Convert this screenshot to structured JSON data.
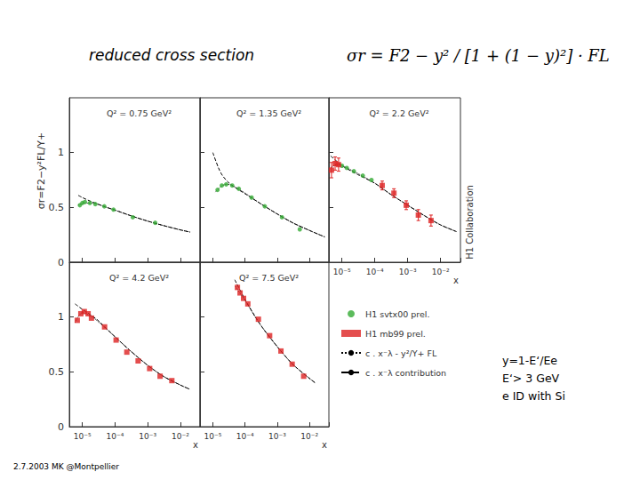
{
  "slide": {
    "title": "reduced cross section",
    "formula": "σr = F2 − y² / [1 + (1 − y)²] · FL",
    "ylabel": "σr=F2−y²FL/Y+",
    "credit": "H1 Collaboration",
    "notes": [
      "y=1-E‘/Ee",
      "E‘> 3 GeV",
      "e ID with Si"
    ],
    "footer": "2.7.2003 MK @Montpellier"
  },
  "chart_data": [
    {
      "type": "scatter",
      "title": "Q² = 0.75 GeV²",
      "log": "x",
      "grid": false,
      "tick_labels": "y",
      "xlim": [
        4e-06,
        0.04
      ],
      "xticks": [
        {
          "value": 1e-05,
          "label": "10⁻⁵"
        },
        {
          "value": 0.0001,
          "label": "10⁻⁴"
        },
        {
          "value": 0.001,
          "label": "10⁻³"
        },
        {
          "value": 0.01,
          "label": "10⁻²"
        }
      ],
      "ylim": [
        0,
        1.5
      ],
      "yticks": [
        0,
        0.5,
        1
      ],
      "series": [
        {
          "name": "H1 svtx00 prel.",
          "type": "scatter",
          "marker": "circle",
          "color": "#33aa33",
          "x": [
            8.4e-06,
            1e-05,
            1.2e-05,
            1.7e-05,
            2.5e-05,
            4.7e-05,
            9e-05,
            0.00035,
            0.0017
          ],
          "values": [
            0.52,
            0.54,
            0.55,
            0.54,
            0.53,
            0.51,
            0.48,
            0.41,
            0.36
          ]
        },
        {
          "name": "c . x⁻λ - y²/Y+ FL",
          "type": "line",
          "line_style": "dotted",
          "color": "#000000",
          "x": [
            7.5e-06,
            1e-05,
            2e-05,
            5e-05,
            0.0001,
            0.0003,
            0.001,
            0.003,
            0.01,
            0.02
          ],
          "values": [
            0.52,
            0.535,
            0.54,
            0.505,
            0.475,
            0.425,
            0.375,
            0.335,
            0.295,
            0.275
          ]
        },
        {
          "name": "c . x⁻λ contribution",
          "type": "line",
          "line_style": "dashed",
          "color": "#000000",
          "x": [
            7.5e-06,
            1e-05,
            2e-05,
            5e-05,
            0.0001,
            0.0003,
            0.001,
            0.003,
            0.01,
            0.02
          ],
          "values": [
            0.61,
            0.59,
            0.55,
            0.505,
            0.475,
            0.425,
            0.375,
            0.335,
            0.295,
            0.275
          ]
        }
      ]
    },
    {
      "type": "scatter",
      "title": "Q² = 1.35 GeV²",
      "log": "x",
      "grid": false,
      "tick_labels": false,
      "xlim": [
        4e-06,
        0.04
      ],
      "xticks": [
        {
          "value": 1e-05,
          "label": "10⁻⁵"
        },
        {
          "value": 0.0001,
          "label": "10⁻⁴"
        },
        {
          "value": 0.001,
          "label": "10⁻³"
        },
        {
          "value": 0.01,
          "label": "10⁻²"
        }
      ],
      "ylim": [
        0,
        1.5
      ],
      "yticks": [
        0,
        0.5,
        1
      ],
      "series": [
        {
          "name": "H1 svtx00 prel.",
          "type": "scatter",
          "marker": "circle",
          "color": "#33aa33",
          "x": [
            1.4e-05,
            1.9e-05,
            2.6e-05,
            4e-05,
            6.4e-05,
            0.00016,
            0.00041,
            0.0014,
            0.005
          ],
          "values": [
            0.66,
            0.7,
            0.71,
            0.7,
            0.67,
            0.59,
            0.51,
            0.41,
            0.3
          ]
        },
        {
          "name": "c . x⁻λ - y²/Y+ FL",
          "type": "line",
          "line_style": "dotted",
          "color": "#000000",
          "x": [
            1.2e-05,
            2e-05,
            3e-05,
            5e-05,
            0.0001,
            0.0003,
            0.001,
            0.003,
            0.01,
            0.03
          ],
          "values": [
            0.64,
            0.7,
            0.71,
            0.685,
            0.63,
            0.535,
            0.44,
            0.36,
            0.29,
            0.23
          ]
        },
        {
          "name": "c . x⁻λ contribution",
          "type": "line",
          "line_style": "dashed",
          "color": "#000000",
          "x": [
            1e-05,
            1.5e-05,
            2e-05,
            3e-05,
            5e-05,
            0.0001,
            0.0003,
            0.001,
            0.003,
            0.01,
            0.03
          ],
          "values": [
            1.0,
            0.86,
            0.79,
            0.73,
            0.68,
            0.625,
            0.535,
            0.44,
            0.36,
            0.29,
            0.23
          ]
        }
      ]
    },
    {
      "type": "scatter",
      "title": "Q² = 2.2 GeV²",
      "log": "x",
      "grid": false,
      "tick_labels": "x",
      "xlabel": "x",
      "xlim": [
        4e-06,
        0.04
      ],
      "xticks": [
        {
          "value": 1e-05,
          "label": "10⁻⁵"
        },
        {
          "value": 0.0001,
          "label": "10⁻⁴"
        },
        {
          "value": 0.001,
          "label": "10⁻³"
        },
        {
          "value": 0.01,
          "label": "10⁻²"
        }
      ],
      "ylim": [
        0,
        1.5
      ],
      "yticks": [
        0,
        0.5,
        1
      ],
      "series": [
        {
          "name": "H1 svtx00 prel.",
          "type": "scatter",
          "marker": "circle",
          "color": "#33aa33",
          "x": [
            1e-05,
            1.4e-05,
            2.3e-05,
            4.3e-05,
            7.9e-05
          ],
          "values": [
            0.88,
            0.86,
            0.83,
            0.79,
            0.75
          ]
        },
        {
          "name": "H1 mb99 prel.",
          "type": "scatter",
          "marker": "square",
          "color": "#dd2222",
          "x": [
            4.8e-06,
            6.2e-06,
            7.9e-06,
            0.000167,
            0.00038,
            0.0009,
            0.0021,
            0.0051
          ],
          "values": [
            0.84,
            0.9,
            0.89,
            0.7,
            0.63,
            0.52,
            0.43,
            0.38
          ],
          "errors": [
            0.07,
            0.06,
            0.06,
            0.04,
            0.04,
            0.04,
            0.05,
            0.05
          ]
        },
        {
          "name": "c . x⁻λ - y²/Y+ FL",
          "type": "line",
          "line_style": "dotted",
          "color": "#000000",
          "x": [
            4.5e-06,
            7e-06,
            1e-05,
            3e-05,
            0.0001,
            0.0003,
            0.001,
            0.003,
            0.01,
            0.03
          ],
          "values": [
            0.86,
            0.89,
            0.88,
            0.81,
            0.72,
            0.62,
            0.52,
            0.43,
            0.34,
            0.28
          ]
        },
        {
          "name": "c . x⁻λ contribution",
          "type": "line",
          "line_style": "dashed",
          "color": "#000000",
          "x": [
            4.5e-06,
            7e-06,
            1e-05,
            3e-05,
            0.0001,
            0.0003,
            0.001,
            0.003,
            0.01,
            0.03
          ],
          "values": [
            0.97,
            0.92,
            0.88,
            0.8,
            0.72,
            0.62,
            0.52,
            0.43,
            0.34,
            0.28
          ]
        }
      ]
    },
    {
      "type": "scatter",
      "title": "Q² = 4.2 GeV²",
      "log": "x",
      "grid": false,
      "tick_labels": true,
      "xlabel": "x",
      "xlim": [
        4e-06,
        0.04
      ],
      "xticks": [
        {
          "value": 1e-05,
          "label": "10⁻⁵"
        },
        {
          "value": 0.0001,
          "label": "10⁻⁴"
        },
        {
          "value": 0.001,
          "label": "10⁻³"
        },
        {
          "value": 0.01,
          "label": "10⁻²"
        }
      ],
      "ylim": [
        0,
        1.5
      ],
      "yticks": [
        0,
        0.5,
        1
      ],
      "series": [
        {
          "name": "H1 mb99 prel.",
          "type": "scatter",
          "marker": "square",
          "color": "#dd2222",
          "x": [
            7e-06,
            9e-06,
            1.15e-05,
            1.5e-05,
            1.9e-05,
            4.8e-05,
            0.000108,
            0.00023,
            0.00051,
            0.00115,
            0.0024,
            0.0055
          ],
          "values": [
            0.97,
            1.03,
            1.05,
            1.03,
            0.99,
            0.91,
            0.79,
            0.68,
            0.6,
            0.53,
            0.46,
            0.42
          ]
        },
        {
          "name": "c . x⁻λ - y²/Y+ FL",
          "type": "line",
          "line_style": "dotted",
          "color": "#000000",
          "x": [
            6e-06,
            1e-05,
            2e-05,
            3e-05,
            0.0001,
            0.0003,
            0.001,
            0.003,
            0.01,
            0.02
          ],
          "values": [
            0.95,
            1.04,
            1.0,
            0.96,
            0.82,
            0.69,
            0.56,
            0.46,
            0.38,
            0.34
          ]
        },
        {
          "name": "c . x⁻λ contribution",
          "type": "line",
          "line_style": "dashed",
          "color": "#000000",
          "x": [
            6e-06,
            1e-05,
            2e-05,
            3e-05,
            0.0001,
            0.0003,
            0.001,
            0.003,
            0.01,
            0.02
          ],
          "values": [
            1.12,
            1.07,
            1.01,
            0.97,
            0.82,
            0.69,
            0.56,
            0.46,
            0.38,
            0.34
          ]
        }
      ]
    },
    {
      "type": "scatter",
      "title": "Q² = 7.5 GeV²",
      "log": "x",
      "grid": false,
      "tick_labels": "x",
      "xlabel": "x",
      "xlim": [
        4e-06,
        0.04
      ],
      "xticks": [
        {
          "value": 1e-05,
          "label": "10⁻⁵"
        },
        {
          "value": 0.0001,
          "label": "10⁻⁴"
        },
        {
          "value": 0.001,
          "label": "10⁻³"
        },
        {
          "value": 0.01,
          "label": "10⁻²"
        }
      ],
      "ylim": [
        0,
        1.5
      ],
      "yticks": [
        0,
        0.5,
        1
      ],
      "series": [
        {
          "name": "H1 mb99 prel.",
          "type": "scatter",
          "marker": "square",
          "color": "#dd2222",
          "x": [
            5.8e-05,
            7e-05,
            9e-05,
            0.000122,
            0.00026,
            0.00058,
            0.0013,
            0.0029,
            0.0066
          ],
          "values": [
            1.27,
            1.22,
            1.17,
            1.12,
            0.98,
            0.83,
            0.69,
            0.57,
            0.46
          ]
        },
        {
          "name": "c . x⁻λ - y²/Y+ FL",
          "type": "line",
          "line_style": "dotted",
          "color": "#000000",
          "x": [
            5e-05,
            0.0001,
            0.0003,
            0.001,
            0.003,
            0.01,
            0.015
          ],
          "values": [
            1.28,
            1.15,
            0.93,
            0.73,
            0.57,
            0.44,
            0.4
          ]
        },
        {
          "name": "c . x⁻λ contribution",
          "type": "line",
          "line_style": "dashed",
          "color": "#000000",
          "x": [
            4.8e-05,
            0.0001,
            0.0003,
            0.001,
            0.003,
            0.01,
            0.015
          ],
          "values": [
            1.34,
            1.16,
            0.93,
            0.73,
            0.57,
            0.44,
            0.4
          ]
        }
      ]
    }
  ]
}
